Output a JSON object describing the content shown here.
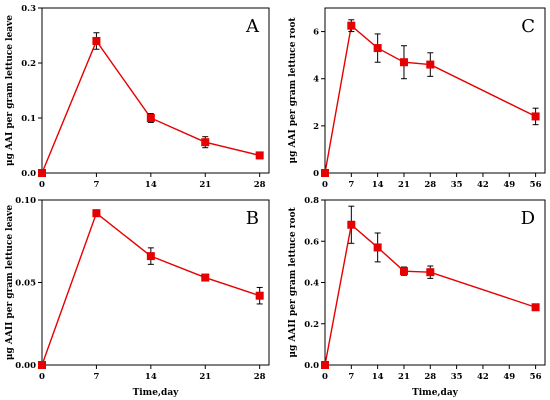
{
  "colors": {
    "series": "#e60000",
    "axis": "#000000"
  },
  "chart_data": [
    {
      "id": "A",
      "type": "line",
      "panel_label": "A",
      "ylabel": "μg AAI per gram lettuce leave",
      "xlabel": "",
      "x": [
        0,
        7,
        14,
        21,
        28
      ],
      "xticks": [
        0,
        7,
        14,
        21,
        28
      ],
      "xlim": [
        0,
        29.2
      ],
      "ylim": [
        0,
        0.3
      ],
      "yticks": [
        0.0,
        0.1,
        0.2,
        0.3
      ],
      "ytick_labels": [
        "0.0",
        "0.1",
        "0.2",
        "0.3"
      ],
      "series": [
        {
          "values": [
            0.0,
            0.24,
            0.1,
            0.056,
            0.032
          ],
          "errors": [
            0.0,
            0.015,
            0.008,
            0.01,
            0.006
          ]
        }
      ]
    },
    {
      "id": "C",
      "type": "line",
      "panel_label": "C",
      "ylabel": "μg AAI per gram lettuce root",
      "xlabel": "",
      "x": [
        0,
        7,
        14,
        21,
        28,
        56
      ],
      "xticks": [
        0,
        7,
        14,
        21,
        28,
        35,
        42,
        49,
        56
      ],
      "xlim": [
        0,
        58.5
      ],
      "ylim": [
        0,
        7
      ],
      "yticks": [
        0,
        2,
        4,
        6
      ],
      "ytick_labels": [
        "0",
        "2",
        "4",
        "6"
      ],
      "series": [
        {
          "values": [
            0.0,
            6.25,
            5.3,
            4.7,
            4.6,
            2.4
          ],
          "errors": [
            0.0,
            0.25,
            0.6,
            0.7,
            0.5,
            0.35
          ]
        }
      ]
    },
    {
      "id": "B",
      "type": "line",
      "panel_label": "B",
      "ylabel": "μg AAII per gram lettuce leave",
      "xlabel": "Time,day",
      "x": [
        0,
        7,
        14,
        21,
        28
      ],
      "xticks": [
        0,
        7,
        14,
        21,
        28
      ],
      "xlim": [
        0,
        29.2
      ],
      "ylim": [
        0,
        0.1
      ],
      "yticks": [
        0.0,
        0.05,
        0.1
      ],
      "ytick_labels": [
        "0.00",
        "0.05",
        "0.10"
      ],
      "series": [
        {
          "values": [
            0.0,
            0.092,
            0.066,
            0.053,
            0.042
          ],
          "errors": [
            0.0,
            0.002,
            0.005,
            0.001,
            0.005
          ]
        }
      ]
    },
    {
      "id": "D",
      "type": "line",
      "panel_label": "D",
      "ylabel": "μg AAII per gram lettuce root",
      "xlabel": "Time,day",
      "x": [
        0,
        7,
        14,
        21,
        28,
        56
      ],
      "xticks": [
        0,
        7,
        14,
        21,
        28,
        35,
        42,
        49,
        56
      ],
      "xlim": [
        0,
        58.5
      ],
      "ylim": [
        0,
        0.8
      ],
      "yticks": [
        0.0,
        0.2,
        0.4,
        0.6,
        0.8
      ],
      "ytick_labels": [
        "0.0",
        "0.2",
        "0.4",
        "0.6",
        "0.8"
      ],
      "series": [
        {
          "values": [
            0.0,
            0.68,
            0.57,
            0.455,
            0.45,
            0.28
          ],
          "errors": [
            0.0,
            0.09,
            0.07,
            0.02,
            0.03,
            0.01
          ]
        }
      ]
    }
  ]
}
